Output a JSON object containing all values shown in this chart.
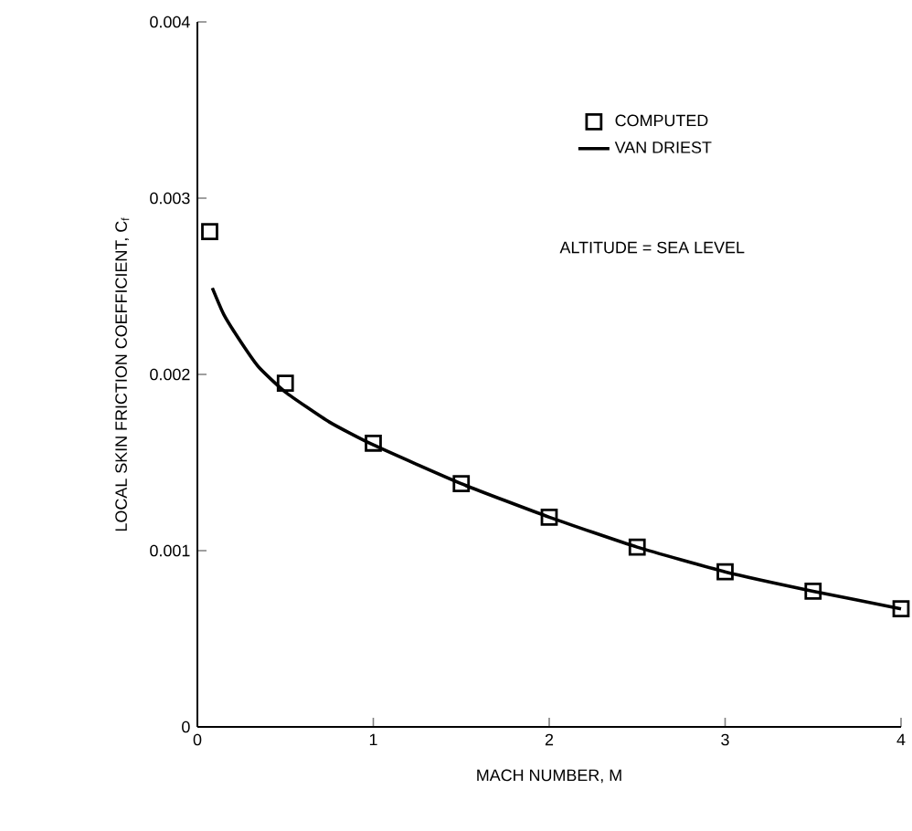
{
  "chart_data": {
    "type": "line",
    "xlabel": "MACH NUMBER, M",
    "ylabel": "LOCAL SKIN FRICTION COEFFICIENT, C$_{f}$",
    "annotations": [
      "ALTITUDE = SEA LEVEL"
    ],
    "series": [
      {
        "name": "COMPUTED",
        "type": "scatter",
        "marker": "square",
        "color": "#000000",
        "x": [
          0.07,
          0.5,
          1,
          1.5,
          2,
          2.5,
          3,
          3.5,
          4
        ],
        "values": [
          0.00281,
          0.00195,
          0.00161,
          0.00138,
          0.00119,
          0.00102,
          0.00088,
          0.00077,
          0.00067
        ]
      },
      {
        "name": "VAN DRIEST",
        "marker": "none",
        "line_style": "solid",
        "color": "#000000",
        "x": [
          0.085,
          0.15,
          0.25,
          0.35,
          0.5,
          0.75,
          1,
          1.5,
          2,
          2.5,
          3,
          3.5,
          4
        ],
        "values": [
          0.00249,
          0.00234,
          0.00218,
          0.00204,
          0.0019,
          0.00173,
          0.0016,
          0.00138,
          0.00119,
          0.00102,
          0.00088,
          0.00077,
          0.00067
        ]
      }
    ],
    "xlim": [
      0,
      4
    ],
    "xticks": [
      0,
      1,
      2,
      3,
      4
    ],
    "ylim": [
      0,
      0.004
    ],
    "yticks": [
      0,
      0.001,
      0.002,
      0.003,
      0.004
    ],
    "grid": false,
    "legend": "top right"
  }
}
